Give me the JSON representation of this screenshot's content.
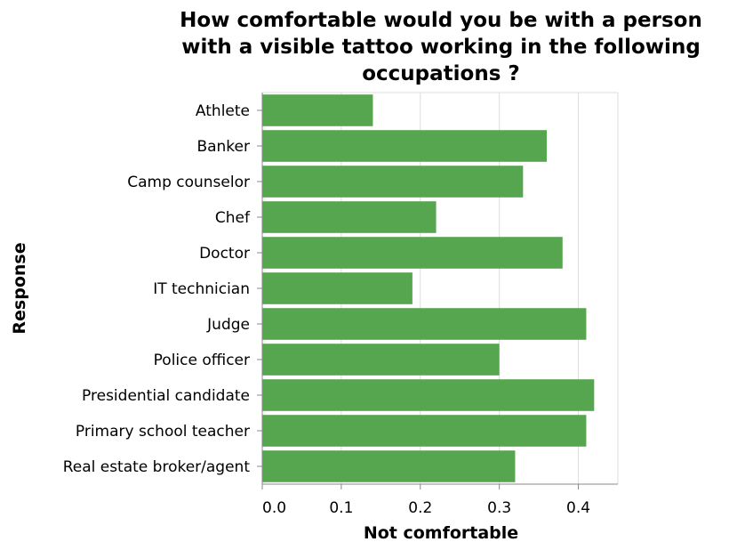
{
  "chart_data": {
    "type": "bar",
    "orientation": "horizontal",
    "title_lines": [
      "How comfortable would you be with a person",
      "with a visible tattoo working in the following",
      "occupations ?"
    ],
    "xlabel": "Not comfortable",
    "ylabel": "Response",
    "categories": [
      "Athlete",
      "Banker",
      "Camp counselor",
      "Chef",
      "Doctor",
      "IT technician",
      "Judge",
      "Police officer",
      "Presidential candidate",
      "Primary school teacher",
      "Real estate broker/agent"
    ],
    "values": [
      0.14,
      0.36,
      0.33,
      0.22,
      0.38,
      0.19,
      0.41,
      0.3,
      0.42,
      0.41,
      0.32
    ],
    "xlim": [
      0,
      0.45
    ],
    "xticks": [
      0.0,
      0.1,
      0.2,
      0.3,
      0.4
    ],
    "xtick_labels": [
      "0.0",
      "0.1",
      "0.2",
      "0.3",
      "0.4"
    ],
    "grid": true,
    "bar_color": "#56a64f"
  }
}
